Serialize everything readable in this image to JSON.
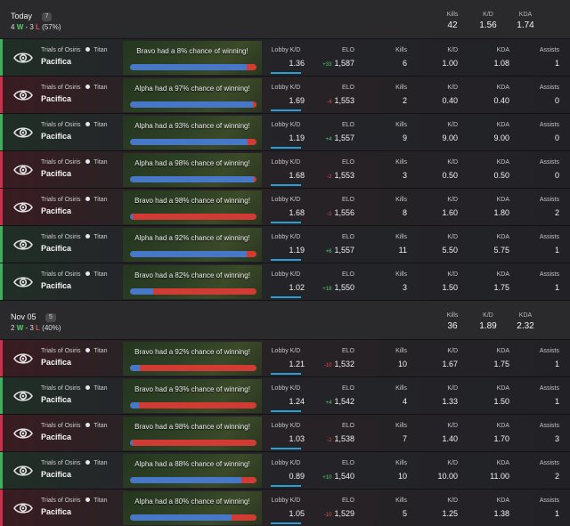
{
  "labels": {
    "mode": "Trials of Osiris",
    "class": "Titan",
    "lobby_kd": "Lobby K/D",
    "elo": "ELO",
    "kills": "Kills",
    "kd": "K/D",
    "kda": "KDA",
    "assists": "Assists"
  },
  "colors": {
    "win": "#3fae5d",
    "loss": "#c9324a",
    "alpha": "#4777c9",
    "bravo": "#d23b33",
    "lobby_bar": "#2a9fd6"
  },
  "days": [
    {
      "title": "Today",
      "count": "7",
      "wins": "4",
      "losses": "3",
      "pct": "(57%)",
      "summary": {
        "kills": "42",
        "kd": "1.56",
        "kda": "1.74"
      },
      "matches": [
        {
          "result": "win",
          "map": "Pacifica",
          "chance": "Bravo had a 8% chance of winning!",
          "alpha_share": 0.92,
          "lobby_kd": "1.36",
          "elo_delta": "+33",
          "elo": "1,587",
          "kills": "6",
          "kd": "1.00",
          "kda": "1.08",
          "assists": "1"
        },
        {
          "result": "loss",
          "map": "Pacifica",
          "chance": "Alpha had a 97% chance of winning!",
          "alpha_share": 0.97,
          "lobby_kd": "1.69",
          "elo_delta": "-4",
          "elo": "1,553",
          "kills": "2",
          "kd": "0.40",
          "kda": "0.40",
          "assists": "0"
        },
        {
          "result": "win",
          "map": "Pacifica",
          "chance": "Alpha had a 93% chance of winning!",
          "alpha_share": 0.93,
          "lobby_kd": "1.19",
          "elo_delta": "+4",
          "elo": "1,557",
          "kills": "9",
          "kd": "9.00",
          "kda": "9.00",
          "assists": "0"
        },
        {
          "result": "loss",
          "map": "Pacifica",
          "chance": "Alpha had a 98% chance of winning!",
          "alpha_share": 0.98,
          "lobby_kd": "1.68",
          "elo_delta": "-2",
          "elo": "1,553",
          "kills": "3",
          "kd": "0.50",
          "kda": "0.50",
          "assists": "0"
        },
        {
          "result": "loss",
          "map": "Pacifica",
          "chance": "Bravo had a 98% chance of winning!",
          "alpha_share": 0.02,
          "lobby_kd": "1.68",
          "elo_delta": "-1",
          "elo": "1,556",
          "kills": "8",
          "kd": "1.60",
          "kda": "1.80",
          "assists": "2"
        },
        {
          "result": "win",
          "map": "Pacifica",
          "chance": "Alpha had a 92% chance of winning!",
          "alpha_share": 0.92,
          "lobby_kd": "1.19",
          "elo_delta": "+6",
          "elo": "1,557",
          "kills": "11",
          "kd": "5.50",
          "kda": "5.75",
          "assists": "1"
        },
        {
          "result": "win",
          "map": "Pacifica",
          "chance": "Bravo had a 82% chance of winning!",
          "alpha_share": 0.18,
          "lobby_kd": "1.02",
          "elo_delta": "+18",
          "elo": "1,550",
          "kills": "3",
          "kd": "1.50",
          "kda": "1.75",
          "assists": "1"
        }
      ]
    },
    {
      "title": "Nov 05",
      "count": "5",
      "wins": "2",
      "losses": "3",
      "pct": "(40%)",
      "summary": {
        "kills": "36",
        "kd": "1.89",
        "kda": "2.32"
      },
      "matches": [
        {
          "result": "loss",
          "map": "Pacifica",
          "chance": "Bravo had a 92% chance of winning!",
          "alpha_share": 0.08,
          "lobby_kd": "1.21",
          "elo_delta": "-10",
          "elo": "1,532",
          "kills": "10",
          "kd": "1.67",
          "kda": "1.75",
          "assists": "1"
        },
        {
          "result": "win",
          "map": "Pacifica",
          "chance": "Bravo had a 93% chance of winning!",
          "alpha_share": 0.07,
          "lobby_kd": "1.24",
          "elo_delta": "+4",
          "elo": "1,542",
          "kills": "4",
          "kd": "1.33",
          "kda": "1.50",
          "assists": "1"
        },
        {
          "result": "loss",
          "map": "Pacifica",
          "chance": "Bravo had a 98% chance of winning!",
          "alpha_share": 0.02,
          "lobby_kd": "1.03",
          "elo_delta": "-2",
          "elo": "1,538",
          "kills": "7",
          "kd": "1.40",
          "kda": "1.70",
          "assists": "3"
        },
        {
          "result": "win",
          "map": "Pacifica",
          "chance": "Alpha had a 88% chance of winning!",
          "alpha_share": 0.88,
          "lobby_kd": "0.89",
          "elo_delta": "+10",
          "elo": "1,540",
          "kills": "10",
          "kd": "10.00",
          "kda": "11.00",
          "assists": "2"
        },
        {
          "result": "loss",
          "map": "Pacifica",
          "chance": "Alpha had a 80% chance of winning!",
          "alpha_share": 0.8,
          "lobby_kd": "1.05",
          "elo_delta": "-10",
          "elo": "1,529",
          "kills": "5",
          "kd": "1.25",
          "kda": "1.38",
          "assists": "1"
        }
      ]
    }
  ]
}
